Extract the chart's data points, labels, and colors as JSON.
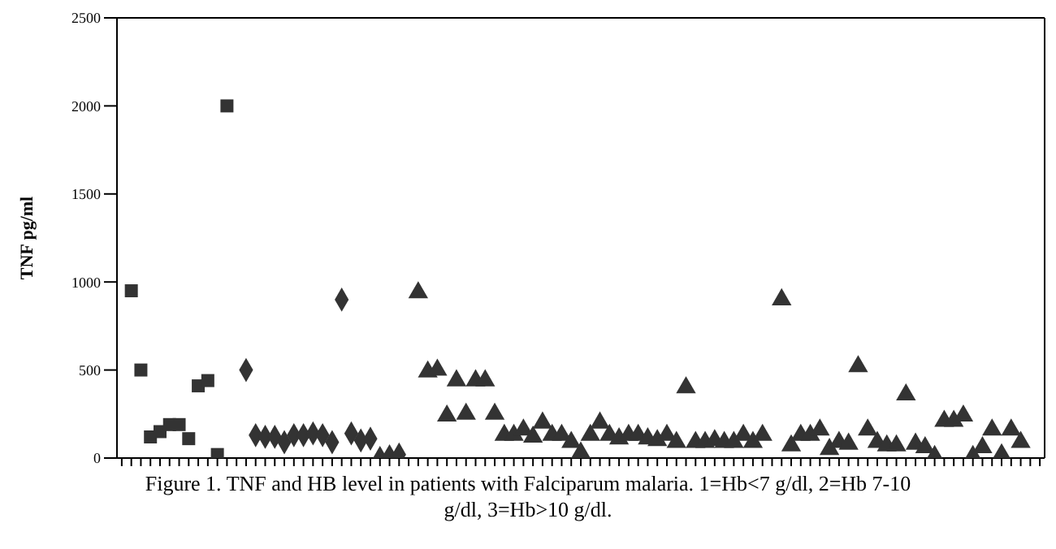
{
  "chart_data": {
    "type": "scatter",
    "ylabel": "TNF pg/ml",
    "annotations": [
      "Figure 1. TNF and HB level in patients with Falciparum malaria. 1=Hb<7 g/dl, 2=Hb 7-10 g/dl, 3=Hb>10 g/dl."
    ],
    "categories": [
      null,
      null,
      null,
      null,
      null,
      null,
      null,
      null,
      null,
      null,
      null,
      null,
      null,
      null,
      null,
      null,
      null,
      null,
      null,
      null,
      null,
      null,
      null,
      null,
      null,
      null,
      null,
      null,
      null,
      null,
      null,
      null,
      null,
      null,
      null,
      null,
      null,
      null,
      null,
      null,
      null,
      null,
      null,
      null,
      null,
      null,
      null,
      null,
      null,
      null,
      null,
      null,
      null,
      null,
      null,
      null,
      null,
      null,
      null,
      null,
      null,
      null,
      null,
      null,
      null,
      null,
      null,
      null,
      null,
      null,
      null,
      null,
      null,
      null,
      null,
      null,
      null,
      null,
      null,
      null,
      null,
      null,
      null,
      null,
      null,
      null,
      null,
      null,
      null,
      null,
      null,
      null,
      null,
      null,
      null,
      null,
      null
    ],
    "series": [
      {
        "color": "#333333",
        "marker": "square",
        "values": [
          null,
          950,
          500,
          120,
          150,
          190,
          190,
          110,
          410,
          440,
          20,
          2000,
          null,
          null,
          null,
          null,
          null,
          null,
          null,
          null,
          null,
          null,
          null,
          null,
          null,
          null,
          null,
          null,
          null,
          null,
          null,
          null,
          null,
          null,
          null,
          null,
          null,
          null,
          null,
          null,
          null,
          null,
          null,
          null,
          null,
          null,
          null,
          null,
          null,
          null,
          null,
          null,
          null,
          null,
          null,
          null,
          null,
          null,
          null,
          null,
          null,
          null,
          null,
          null,
          null,
          null,
          null,
          null,
          null,
          null,
          null,
          null,
          null,
          null,
          null,
          null,
          null,
          null,
          null,
          null,
          null,
          null,
          null,
          null,
          null,
          null,
          null,
          null,
          null,
          null,
          null,
          null,
          null,
          null,
          null,
          null,
          null
        ]
      },
      {
        "color": "#333333",
        "marker": "diamond",
        "values": [
          null,
          null,
          null,
          null,
          null,
          null,
          null,
          null,
          null,
          null,
          null,
          null,
          null,
          500,
          130,
          120,
          120,
          90,
          130,
          130,
          140,
          130,
          90,
          900,
          140,
          100,
          110,
          0,
          10,
          20,
          null,
          null,
          null,
          null,
          null,
          null,
          null,
          null,
          null,
          null,
          null,
          null,
          null,
          null,
          null,
          null,
          null,
          null,
          null,
          null,
          null,
          null,
          null,
          null,
          null,
          null,
          null,
          null,
          null,
          null,
          null,
          null,
          null,
          null,
          null,
          null,
          null,
          null,
          null,
          null,
          null,
          null,
          null,
          null,
          null,
          null,
          null,
          null,
          null,
          null,
          null,
          null,
          null,
          null,
          null,
          null,
          null,
          null,
          null,
          null,
          null,
          null,
          null,
          null,
          null,
          null,
          null
        ]
      },
      {
        "color": "#333333",
        "marker": "triangle",
        "values": [
          null,
          null,
          null,
          null,
          null,
          null,
          null,
          null,
          null,
          null,
          null,
          null,
          null,
          null,
          null,
          null,
          null,
          null,
          null,
          null,
          null,
          null,
          null,
          null,
          null,
          null,
          null,
          null,
          null,
          null,
          null,
          940,
          490,
          500,
          240,
          440,
          250,
          440,
          440,
          250,
          130,
          130,
          160,
          120,
          200,
          130,
          130,
          90,
          30,
          130,
          200,
          130,
          110,
          130,
          130,
          110,
          100,
          130,
          90,
          400,
          90,
          90,
          100,
          90,
          90,
          130,
          90,
          130,
          null,
          900,
          70,
          130,
          130,
          160,
          50,
          90,
          80,
          520,
          160,
          90,
          70,
          70,
          360,
          80,
          60,
          10,
          210,
          210,
          240,
          10,
          60,
          160,
          20,
          160,
          90,
          null,
          null
        ]
      }
    ],
    "ylim": [
      0,
      2500
    ],
    "yticks": [
      0,
      500,
      1000,
      1500,
      2000,
      2500
    ]
  }
}
